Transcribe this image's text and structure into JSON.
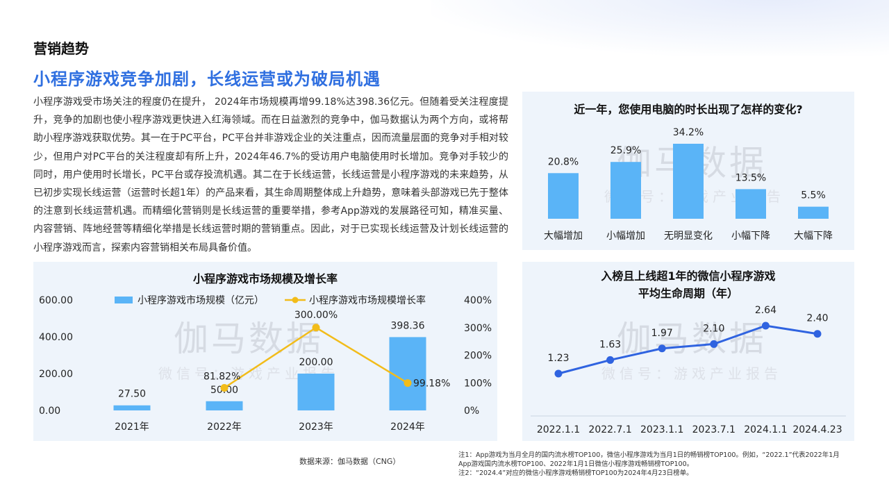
{
  "page": {
    "section_tag": "营销趋势",
    "headline": "小程序游戏竞争加剧，长线运营或为破局机遇",
    "body": "小程序游戏受市场关注的程度仍在提升， 2024年市场规模再增99.18%达398.36亿元。但随着受关注程度提升，竞争的加剧也使小程序游戏更快进入红海领域。而在日益激烈的竞争中，伽马数据认为两个方向，或将帮助小程序游戏获取优势。其一在于PC平台，PC平台并非游戏企业的关注重点，因而流量层面的竞争对手相对较少，但用户对PC平台的关注程度却有所上升，2024年46.7%的受访用户电脑使用时长增加。竞争对手较少的同时，用户使用时长增长，PC平台或存投流机遇。其二在于长线运营，长线运营是小程序游戏的未来趋势，从已初步实现长线运营（运营时长超1年）的产品来看，其生命周期整体成上升趋势，意味着头部游戏已先于整体的注意到长线运营机遇。而精细化营销则是长线运营的重要举措，参考App游戏的发展路径可知，精准买量、内容营销、阵地经营等精细化举措是长线运营时期的营销重点。因此，对于已实现长线运营及计划长线运营的小程序游戏而言，探索内容营销相关布局具备价值。",
    "watermark": {
      "main": "伽马数据",
      "sub": "微信号：游戏产业报告"
    },
    "source": "数据来源：伽马数据（CNG）",
    "notes": [
      "注1：App游戏为当月全月的国内流水榜TOP100，微信小程序游戏为当月1日的畅销榜TOP100。例如，“2022.1”代表2022年1月App游戏国内流水榜TOP100、2022年1月1日微信小程序游戏畅销榜TOP100。",
      "注2：“2024.4”对应的微信小程序游戏畅销榜TOP100为2024年4月23日榜单。"
    ],
    "colors": {
      "accent": "#2f6fe0",
      "bar": "#5ab4f7",
      "line_yellow": "#f2bc1a",
      "line_blue": "#2f63e0",
      "panel_bg": "#eef4fb"
    }
  },
  "chart_data": [
    {
      "type": "bar",
      "title": "近一年，您使用电脑的时长出现了怎样的变化?",
      "categories": [
        "大幅增加",
        "小幅增加",
        "无明显变化",
        "小幅下降",
        "大幅下降"
      ],
      "values": [
        20.8,
        25.9,
        34.2,
        13.5,
        5.5
      ],
      "labels": [
        "20.8%",
        "25.9%",
        "34.2%",
        "13.5%",
        "5.5%"
      ],
      "ylim": [
        0,
        40
      ]
    },
    {
      "type": "bar+line",
      "title": "小程序游戏市场规模及增长率",
      "categories": [
        "2021年",
        "2022年",
        "2023年",
        "2024年"
      ],
      "series": [
        {
          "name": "小程序游戏市场规模（亿元）",
          "axis": "left",
          "values": [
            27.5,
            50.0,
            200.0,
            398.36
          ],
          "labels": [
            "27.50",
            "50.00",
            "200.00",
            "398.36"
          ]
        },
        {
          "name": "小程序游戏市场规模增长率",
          "axis": "right",
          "values": [
            null,
            81.82,
            300.0,
            99.18
          ],
          "labels": [
            "",
            "81.82%",
            "300.00%",
            "99.18%"
          ]
        }
      ],
      "y_left_ticks": [
        "600.00",
        "400.00",
        "200.00",
        "0.00"
      ],
      "y_left_lim": [
        0,
        600
      ],
      "y_right_ticks": [
        "400%",
        "300%",
        "200%",
        "100%",
        "0%"
      ],
      "y_right_lim": [
        0,
        400
      ],
      "legend": "top"
    },
    {
      "type": "line",
      "title": "入榜且上线超1年的微信小程序游戏平均生命周期（年）",
      "title_lines": [
        "入榜且上线超1年的微信小程序游戏",
        "平均生命周期（年）"
      ],
      "categories": [
        "2022.1.1",
        "2022.7.1",
        "2023.1.1",
        "2023.7.1",
        "2024.1.1",
        "2024.4.23"
      ],
      "values": [
        1.23,
        1.63,
        1.97,
        2.1,
        2.64,
        2.4
      ],
      "labels": [
        "1.23",
        "1.63",
        "1.97",
        "2.10",
        "2.64",
        "2.40"
      ],
      "ylim": [
        0,
        3
      ]
    }
  ]
}
